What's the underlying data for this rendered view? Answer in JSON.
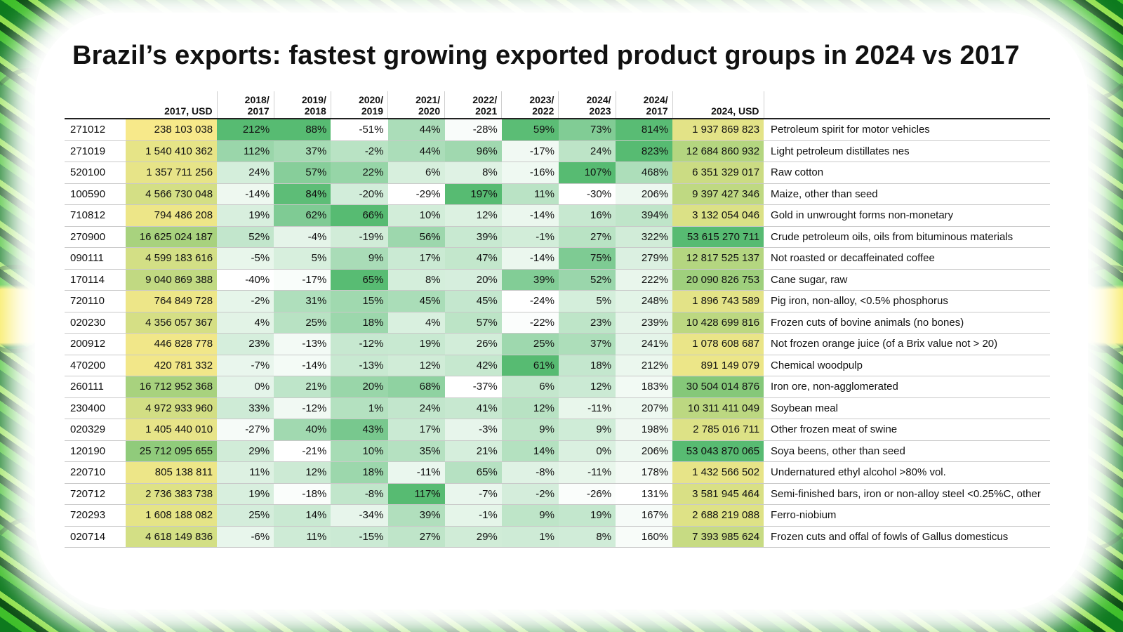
{
  "title": "Brazil’s exports: fastest growing exported product groups in 2024 vs 2017",
  "colors": {
    "usd_low": "#f7e98a",
    "usd_high": "#57bb72",
    "pct_low": "#ffffff",
    "pct_high": "#57bb72"
  },
  "headers": {
    "usd2017": "2017, USD",
    "pct": [
      [
        "2018/",
        "2017"
      ],
      [
        "2019/",
        "2018"
      ],
      [
        "2020/",
        "2019"
      ],
      [
        "2021/",
        "2020"
      ],
      [
        "2022/",
        "2021"
      ],
      [
        "2023/",
        "2022"
      ],
      [
        "2024/",
        "2023"
      ],
      [
        "2024/",
        "2017"
      ]
    ],
    "usd2024": "2024, USD"
  },
  "chart_data": {
    "type": "table",
    "title": "Brazil’s exports: fastest growing exported product groups in 2024 vs 2017",
    "columns": [
      "",
      "2017, USD",
      "2018/2017",
      "2019/2018",
      "2020/2019",
      "2021/2020",
      "2022/2021",
      "2023/2022",
      "2024/2023",
      "2024/2017",
      "2024, USD",
      ""
    ],
    "rows": [
      {
        "code": "271012",
        "usd2017": "238 103 038",
        "pct": [
          "212%",
          "88%",
          "-51%",
          "44%",
          "-28%",
          "59%",
          "73%",
          "814%"
        ],
        "usd2024": "1 937 869 823",
        "desc": "Petroleum spirit for motor vehicles"
      },
      {
        "code": "271019",
        "usd2017": "1 540 410 362",
        "pct": [
          "112%",
          "37%",
          "-2%",
          "44%",
          "96%",
          "-17%",
          "24%",
          "823%"
        ],
        "usd2024": "12 684 860 932",
        "desc": "Light petroleum distillates nes"
      },
      {
        "code": "520100",
        "usd2017": "1 357 711 256",
        "pct": [
          "24%",
          "57%",
          "22%",
          "6%",
          "8%",
          "-16%",
          "107%",
          "468%"
        ],
        "usd2024": "6 351 329 017",
        "desc": "Raw cotton"
      },
      {
        "code": "100590",
        "usd2017": "4 566 730 048",
        "pct": [
          "-14%",
          "84%",
          "-20%",
          "-29%",
          "197%",
          "11%",
          "-30%",
          "206%"
        ],
        "usd2024": "9 397 427 346",
        "desc": "Maize, other than seed"
      },
      {
        "code": "710812",
        "usd2017": "794 486 208",
        "pct": [
          "19%",
          "62%",
          "66%",
          "10%",
          "12%",
          "-14%",
          "16%",
          "394%"
        ],
        "usd2024": "3 132 054 046",
        "desc": "Gold in unwrought forms non-monetary"
      },
      {
        "code": "270900",
        "usd2017": "16 625 024 187",
        "pct": [
          "52%",
          "-4%",
          "-19%",
          "56%",
          "39%",
          "-1%",
          "27%",
          "322%"
        ],
        "usd2024": "53 615 270 711",
        "desc": "Crude petroleum oils, oils from bituminous materials"
      },
      {
        "code": "090111",
        "usd2017": "4 599 183 616",
        "pct": [
          "-5%",
          "5%",
          "9%",
          "17%",
          "47%",
          "-14%",
          "75%",
          "279%"
        ],
        "usd2024": "12 817 525 137",
        "desc": "Not roasted or decaffeinated coffee"
      },
      {
        "code": "170114",
        "usd2017": "9 040 869 388",
        "pct": [
          "-40%",
          "-17%",
          "65%",
          "8%",
          "20%",
          "39%",
          "52%",
          "222%"
        ],
        "usd2024": "20 090 826 753",
        "desc": "Cane sugar, raw"
      },
      {
        "code": "720110",
        "usd2017": "764 849 728",
        "pct": [
          "-2%",
          "31%",
          "15%",
          "45%",
          "45%",
          "-24%",
          "5%",
          "248%"
        ],
        "usd2024": "1 896 743 589",
        "desc": "Pig iron, non-alloy, <0.5% phosphorus"
      },
      {
        "code": "020230",
        "usd2017": "4 356 057 367",
        "pct": [
          "4%",
          "25%",
          "18%",
          "4%",
          "57%",
          "-22%",
          "23%",
          "239%"
        ],
        "usd2024": "10 428 699 816",
        "desc": "Frozen cuts of bovine animals (no bones)"
      },
      {
        "code": "200912",
        "usd2017": "446 828 778",
        "pct": [
          "23%",
          "-13%",
          "-12%",
          "19%",
          "26%",
          "25%",
          "37%",
          "241%"
        ],
        "usd2024": "1 078 608 687",
        "desc": "Not frozen orange juice (of a Brix value not > 20)"
      },
      {
        "code": "470200",
        "usd2017": "420 781 332",
        "pct": [
          "-7%",
          "-14%",
          "-13%",
          "12%",
          "42%",
          "61%",
          "18%",
          "212%"
        ],
        "usd2024": "891 149 079",
        "desc": "Chemical woodpulp"
      },
      {
        "code": "260111",
        "usd2017": "16 712 952 368",
        "pct": [
          "0%",
          "21%",
          "20%",
          "68%",
          "-37%",
          "6%",
          "12%",
          "183%"
        ],
        "usd2024": "30 504 014 876",
        "desc": "Iron ore, non-agglomerated"
      },
      {
        "code": "230400",
        "usd2017": "4 972 933 960",
        "pct": [
          "33%",
          "-12%",
          "1%",
          "24%",
          "41%",
          "12%",
          "-11%",
          "207%"
        ],
        "usd2024": "10 311 411 049",
        "desc": "Soybean meal"
      },
      {
        "code": "020329",
        "usd2017": "1 405 440 010",
        "pct": [
          "-27%",
          "40%",
          "43%",
          "17%",
          "-3%",
          "9%",
          "9%",
          "198%"
        ],
        "usd2024": "2 785 016 711",
        "desc": "Other frozen meat of swine"
      },
      {
        "code": "120190",
        "usd2017": "25 712 095 655",
        "pct": [
          "29%",
          "-21%",
          "10%",
          "35%",
          "21%",
          "14%",
          "0%",
          "206%"
        ],
        "usd2024": "53 043 870 065",
        "desc": "Soya beens, other than seed"
      },
      {
        "code": "220710",
        "usd2017": "805 138 811",
        "pct": [
          "11%",
          "12%",
          "18%",
          "-11%",
          "65%",
          "-8%",
          "-11%",
          "178%"
        ],
        "usd2024": "1 432 566 502",
        "desc": "Undernatured ethyl alcohol >80% vol."
      },
      {
        "code": "720712",
        "usd2017": "2 736 383 738",
        "pct": [
          "19%",
          "-18%",
          "-8%",
          "117%",
          "-7%",
          "-2%",
          "-26%",
          "131%"
        ],
        "usd2024": "3 581 945 464",
        "desc": "Semi-finished bars, iron or non-alloy steel <0.25%C, other"
      },
      {
        "code": "720293",
        "usd2017": "1 608 188 082",
        "pct": [
          "25%",
          "14%",
          "-34%",
          "39%",
          "-1%",
          "9%",
          "19%",
          "167%"
        ],
        "usd2024": "2 688 219 088",
        "desc": "Ferro-niobium"
      },
      {
        "code": "020714",
        "usd2017": "4 618 149 836",
        "pct": [
          "-6%",
          "11%",
          "-15%",
          "27%",
          "29%",
          "1%",
          "8%",
          "160%"
        ],
        "usd2024": "7 393 985 624",
        "desc": "Frozen cuts and offal of fowls of Gallus domesticus"
      }
    ]
  }
}
